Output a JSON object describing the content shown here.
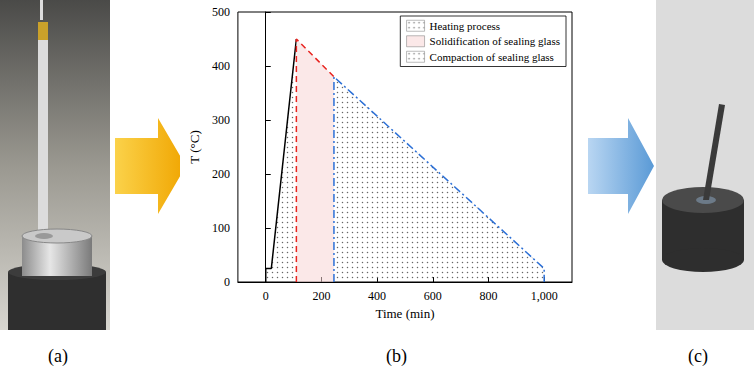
{
  "panels": {
    "a": {
      "label": "(a)"
    },
    "b": {
      "label": "(b)"
    },
    "c": {
      "label": "(c)"
    }
  },
  "chart_data": {
    "type": "line",
    "x_label": "Time (min)",
    "y_label": "T (°C)",
    "xlim": [
      -100,
      1100
    ],
    "xticks": [
      0,
      200,
      400,
      600,
      800,
      1000
    ],
    "ylim": [
      0,
      500
    ],
    "yticks": [
      0,
      100,
      200,
      300,
      400,
      500
    ],
    "grid": false,
    "legend": "upper right",
    "series": [
      {
        "name": "Heating process",
        "color": "#000000",
        "line_style": "solid",
        "x": [
          0,
          0,
          20,
          110
        ],
        "values": [
          0,
          25,
          25,
          450
        ]
      },
      {
        "name": "Solidification of sealing glass",
        "color": "#e8231f",
        "line_style": "dashed",
        "x": [
          110,
          110,
          245
        ],
        "values": [
          0,
          450,
          380
        ]
      },
      {
        "name": "Compaction of sealing glass",
        "color": "#2b6fd6",
        "line_style": "dashdot",
        "x": [
          245,
          245,
          1000,
          1000
        ],
        "values": [
          0,
          380,
          25,
          0
        ]
      }
    ]
  }
}
